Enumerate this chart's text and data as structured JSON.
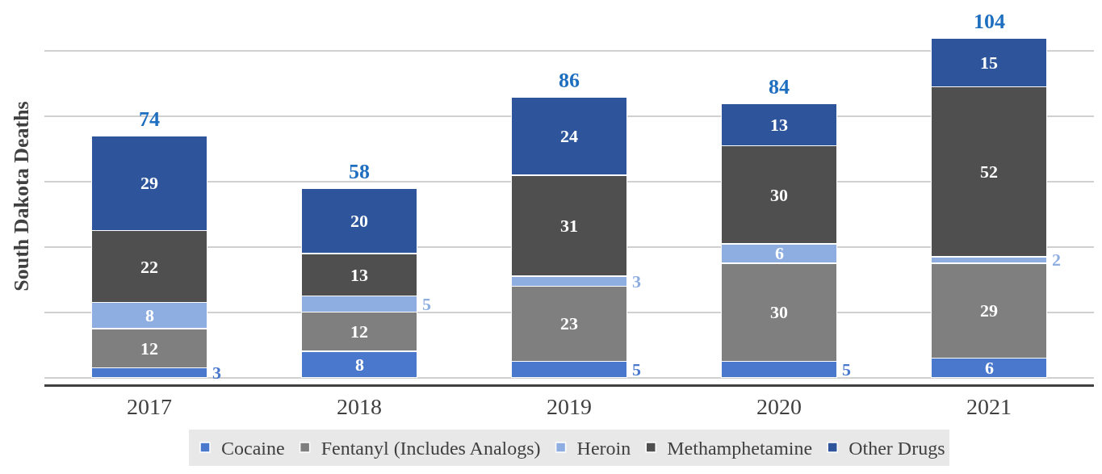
{
  "chart_data": {
    "type": "bar",
    "stacked": true,
    "ylabel": "South Dakota Deaths",
    "categories": [
      "2017",
      "2018",
      "2019",
      "2020",
      "2021"
    ],
    "series": [
      {
        "name": "Cocaine",
        "color": "#4a78cc",
        "values": [
          3,
          8,
          5,
          5,
          6
        ]
      },
      {
        "name": "Fentanyl (Includes Analogs)",
        "color": "#7f7f7f",
        "values": [
          12,
          12,
          23,
          30,
          29
        ]
      },
      {
        "name": "Heroin",
        "color": "#8eaee2",
        "values": [
          8,
          5,
          3,
          6,
          2
        ]
      },
      {
        "name": "Methamphetamine",
        "color": "#4f4f4f",
        "values": [
          22,
          13,
          31,
          30,
          52
        ]
      },
      {
        "name": "Other Drugs",
        "color": "#2e559c",
        "values": [
          29,
          20,
          24,
          13,
          15
        ]
      }
    ],
    "data_labels": true,
    "totals": [
      "74",
      "58",
      "86",
      "84",
      "104"
    ],
    "grid": "y",
    "tick_labels": "x",
    "legend": "bottom"
  }
}
